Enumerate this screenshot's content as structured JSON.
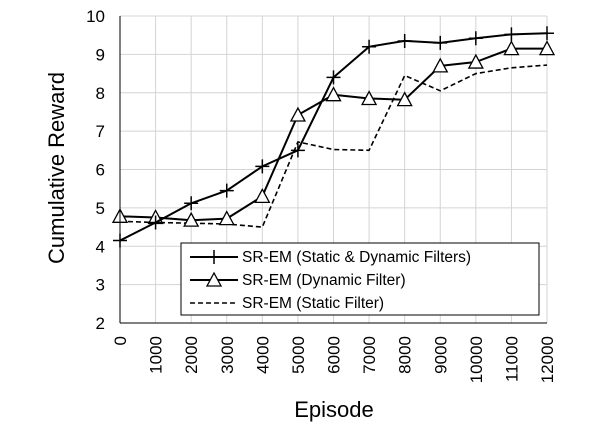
{
  "chart_data": {
    "type": "line",
    "title": "",
    "xlabel": "Episode",
    "ylabel": "Cumulative Reward",
    "categories": [
      "0",
      "1000",
      "2000",
      "3000",
      "4000",
      "5000",
      "6000",
      "7000",
      "8000",
      "9000",
      "10000",
      "11000",
      "12000"
    ],
    "x": [
      0,
      1000,
      2000,
      3000,
      4000,
      5000,
      6000,
      7000,
      8000,
      9000,
      10000,
      11000,
      12000
    ],
    "xlim": [
      0,
      12000
    ],
    "ylim": [
      2,
      10
    ],
    "yticks": [
      "2",
      "3",
      "4",
      "5",
      "6",
      "7",
      "8",
      "9",
      "10"
    ],
    "grid": true,
    "legend_position": "bottom-right",
    "series": [
      {
        "name": "SR-EM (Static & Dynamic Filters)",
        "marker": "plus",
        "line": "solid",
        "color": "#000000",
        "values": [
          4.15,
          4.62,
          5.12,
          5.45,
          6.08,
          6.5,
          8.4,
          9.2,
          9.35,
          9.3,
          9.42,
          9.52,
          9.55
        ]
      },
      {
        "name": "SR-EM (Dynamic Filter)",
        "marker": "triangle",
        "line": "solid",
        "color": "#000000",
        "values": [
          4.78,
          4.75,
          4.68,
          4.72,
          5.3,
          7.42,
          7.95,
          7.85,
          7.82,
          8.7,
          8.8,
          9.15,
          9.15
        ]
      },
      {
        "name": "SR-EM (Static Filter)",
        "marker": "none",
        "line": "dashed",
        "color": "#000000",
        "values": [
          4.65,
          4.62,
          4.6,
          4.58,
          4.5,
          6.72,
          6.52,
          6.5,
          8.45,
          8.05,
          8.5,
          8.65,
          8.72
        ]
      }
    ]
  }
}
